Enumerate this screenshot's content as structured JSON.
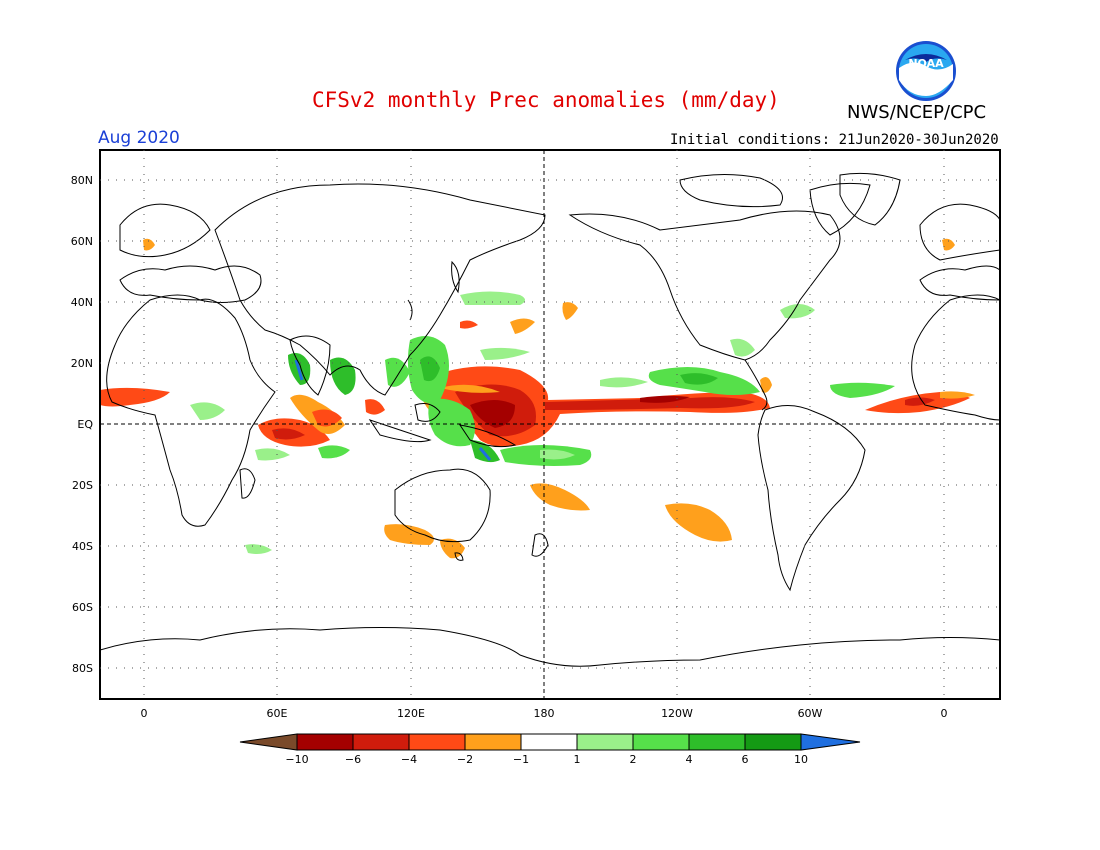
{
  "title": "CFSv2 monthly Prec anomalies (mm/day)",
  "agency": "NWS/NCEP/CPC",
  "logo_text": "NOAA",
  "valid_month": "Aug 2020",
  "initial_conditions": "Initial conditions: 21Jun2020-30Jun2020",
  "map": {
    "lat_labels": [
      "80N",
      "60N",
      "40N",
      "20N",
      "EQ",
      "20S",
      "40S",
      "60S",
      "80S"
    ],
    "lon_labels": [
      "0",
      "60E",
      "120E",
      "180",
      "120W",
      "60W",
      "0"
    ],
    "colorbar": {
      "tick_labels": [
        "-10",
        "-6",
        "-4",
        "-2",
        "-1",
        "1",
        "2",
        "4",
        "6",
        "10"
      ],
      "colors": [
        "#7a4a2a",
        "#a40000",
        "#d01c0c",
        "#ff4a16",
        "#ffa01c",
        "#ffffff",
        "#9af08a",
        "#56e04a",
        "#2ebe2a",
        "#149a14",
        "#1f6fe0"
      ]
    }
  }
}
